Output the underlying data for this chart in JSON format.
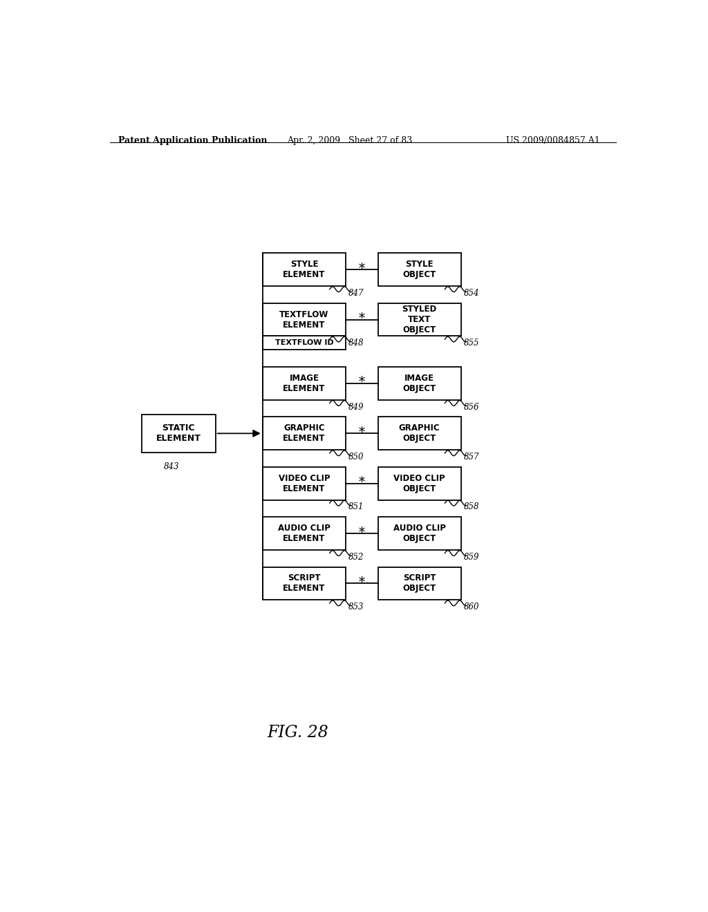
{
  "bg_color": "#ffffff",
  "header_left": "Patent Application Publication",
  "header_mid": "Apr. 2, 2009   Sheet 27 of 83",
  "header_right": "US 2009/0084857 A1",
  "fig_label": "FIG. 28",
  "static_label": "STATIC\nELEMENT",
  "static_ref": "843",
  "left_boxes": [
    {
      "label": "STYLE\nELEMENT",
      "ref": "847",
      "sub": null
    },
    {
      "label": "TEXTFLOW\nELEMENT",
      "ref": "848",
      "sub": "TEXTFLOW ID"
    },
    {
      "label": "IMAGE\nELEMENT",
      "ref": "849",
      "sub": null
    },
    {
      "label": "GRAPHIC\nELEMENT",
      "ref": "850",
      "sub": null
    },
    {
      "label": "VIDEO CLIP\nELEMENT",
      "ref": "851",
      "sub": null
    },
    {
      "label": "AUDIO CLIP\nELEMENT",
      "ref": "852",
      "sub": null
    },
    {
      "label": "SCRIPT\nELEMENT",
      "ref": "853",
      "sub": null
    }
  ],
  "right_boxes": [
    {
      "label": "STYLE\nOBJECT",
      "ref": "854"
    },
    {
      "label": "STYLED\nTEXT\nOBJECT",
      "ref": "855"
    },
    {
      "label": "IMAGE\nOBJECT",
      "ref": "856"
    },
    {
      "label": "GRAPHIC\nOBJECT",
      "ref": "857"
    },
    {
      "label": "VIDEO CLIP\nOBJECT",
      "ref": "858"
    },
    {
      "label": "AUDIO CLIP\nOBJECT",
      "ref": "859"
    },
    {
      "label": "SCRIPT\nOBJECT",
      "ref": "860"
    }
  ]
}
